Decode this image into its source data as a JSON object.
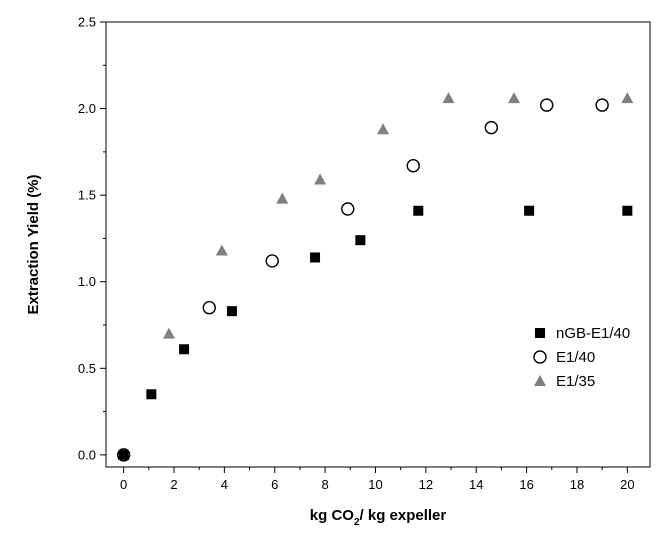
{
  "chart_data": {
    "type": "scatter",
    "xlabel_main": "kg CO",
    "xlabel_sub": "2",
    "xlabel_rest": "/ kg expeller",
    "ylabel": "Extraction Yield (%)",
    "xlim": [
      -0.7,
      20.9
    ],
    "ylim": [
      -0.07,
      2.5
    ],
    "xticks": [
      0,
      2,
      4,
      6,
      8,
      10,
      12,
      14,
      16,
      18,
      20
    ],
    "yticks": [
      0.0,
      0.5,
      1.0,
      1.5,
      2.0,
      2.5
    ],
    "ytick_labels": [
      "0.0",
      "0.5",
      "1.0",
      "1.5",
      "2.0",
      "2.5"
    ],
    "grid": false,
    "legend_position": "right",
    "series": [
      {
        "name": "nGB-E1/40",
        "marker": "square-filled",
        "color": "#000000",
        "x": [
          0,
          1.1,
          2.4,
          4.3,
          7.6,
          9.4,
          11.7,
          16.1,
          20.0
        ],
        "y": [
          0.0,
          0.35,
          0.61,
          0.83,
          1.14,
          1.24,
          1.41,
          1.41,
          1.41
        ]
      },
      {
        "name": "E1/40",
        "marker": "circle-open",
        "color": "#000000",
        "x": [
          0,
          3.4,
          5.9,
          8.9,
          11.5,
          14.6,
          16.8,
          19.0
        ],
        "y": [
          0.0,
          0.85,
          1.12,
          1.42,
          1.67,
          1.89,
          2.02,
          2.02
        ]
      },
      {
        "name": "E1/35",
        "marker": "triangle-filled",
        "color": "#808080",
        "x": [
          0,
          1.8,
          3.9,
          6.3,
          7.8,
          10.3,
          12.9,
          15.5,
          20.0
        ],
        "y": [
          0.0,
          0.7,
          1.18,
          1.48,
          1.59,
          1.88,
          2.06,
          2.06,
          2.06
        ]
      }
    ]
  }
}
